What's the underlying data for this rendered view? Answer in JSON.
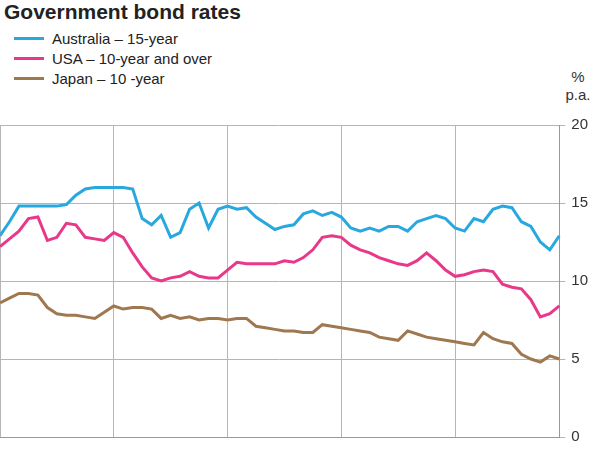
{
  "chart_data": {
    "type": "line",
    "title": "Government bond rates",
    "ylabel": "% p.a.",
    "categories": [
      null,
      null,
      null,
      null,
      null,
      null,
      null,
      null,
      null,
      null,
      null,
      null,
      null,
      null,
      null,
      null,
      null,
      null,
      null,
      null,
      null,
      null,
      null,
      null,
      null,
      null,
      null,
      null,
      null,
      null,
      null,
      null,
      null,
      null,
      null,
      null,
      null,
      null,
      null,
      null,
      null,
      null,
      null,
      null,
      null,
      null,
      null,
      null,
      null,
      null,
      null,
      null,
      null,
      null,
      null,
      null,
      null,
      null,
      null,
      null
    ],
    "series": [
      {
        "name": "Australia – 15-year",
        "color": "#29a8e0",
        "values": [
          12.9,
          13.8,
          14.8,
          14.8,
          14.8,
          14.8,
          14.8,
          14.9,
          15.5,
          15.9,
          16.0,
          16.0,
          16.0,
          16.0,
          15.9,
          14.0,
          13.6,
          14.2,
          12.8,
          13.1,
          14.6,
          15.0,
          13.4,
          14.6,
          14.8,
          14.6,
          14.7,
          14.1,
          13.7,
          13.3,
          13.5,
          13.6,
          14.3,
          14.5,
          14.2,
          14.4,
          14.1,
          13.4,
          13.2,
          13.4,
          13.2,
          13.5,
          13.5,
          13.2,
          13.8,
          14.0,
          14.2,
          14.0,
          13.4,
          13.2,
          14.0,
          13.8,
          14.6,
          14.8,
          14.7,
          13.8,
          13.5,
          12.5,
          12.0,
          12.9
        ]
      },
      {
        "name": "USA – 10-year and over",
        "color": "#e8388a",
        "values": [
          12.2,
          12.7,
          13.2,
          14.0,
          14.1,
          12.6,
          12.8,
          13.7,
          13.6,
          12.8,
          12.7,
          12.6,
          13.1,
          12.8,
          11.8,
          10.9,
          10.2,
          10.0,
          10.2,
          10.3,
          10.6,
          10.3,
          10.2,
          10.2,
          10.7,
          11.2,
          11.1,
          11.1,
          11.1,
          11.1,
          11.3,
          11.2,
          11.5,
          12.0,
          12.8,
          12.9,
          12.8,
          12.3,
          12.0,
          11.8,
          11.5,
          11.3,
          11.1,
          11.0,
          11.3,
          11.8,
          11.3,
          10.7,
          10.3,
          10.4,
          10.6,
          10.7,
          10.6,
          9.8,
          9.6,
          9.5,
          8.8,
          7.7,
          7.9,
          8.4
        ]
      },
      {
        "name": "Japan – 10 -year",
        "color": "#a07850",
        "values": [
          8.6,
          8.9,
          9.2,
          9.2,
          9.1,
          8.3,
          7.9,
          7.8,
          7.8,
          7.7,
          7.6,
          8.0,
          8.4,
          8.2,
          8.3,
          8.3,
          8.2,
          7.6,
          7.8,
          7.6,
          7.7,
          7.5,
          7.6,
          7.6,
          7.5,
          7.6,
          7.6,
          7.1,
          7.0,
          6.9,
          6.8,
          6.8,
          6.7,
          6.7,
          7.2,
          7.1,
          7.0,
          6.9,
          6.8,
          6.7,
          6.4,
          6.3,
          6.2,
          6.8,
          6.6,
          6.4,
          6.3,
          6.2,
          6.1,
          6.0,
          5.9,
          6.7,
          6.3,
          6.1,
          6.0,
          5.3,
          5.0,
          4.8,
          5.2,
          5.0
        ]
      }
    ],
    "ylim": [
      0,
      20
    ],
    "yticks": [
      0,
      5,
      10,
      15,
      20
    ],
    "grid": true,
    "tick_labels": "y"
  }
}
